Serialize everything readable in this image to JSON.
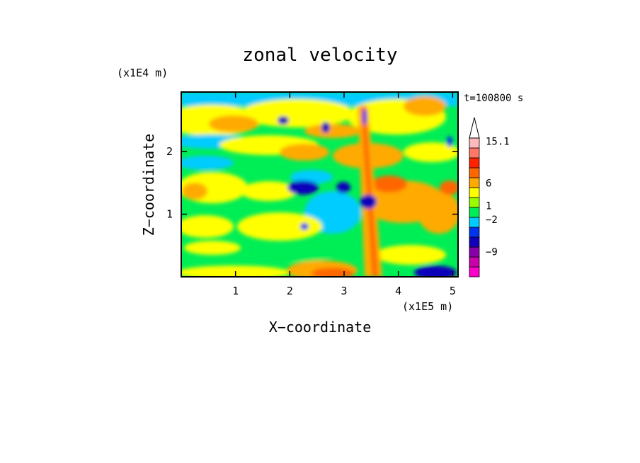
{
  "chart_data": {
    "type": "heatmap",
    "title": "zonal velocity",
    "xlabel": "X−coordinate",
    "ylabel": "Z−coordinate",
    "x_scale_label": "(x1E5 m)",
    "y_scale_label": "(x1E4 m)",
    "time_label": "t=100800 s",
    "xlim": [
      0.0,
      5.1
    ],
    "ylim": [
      0.0,
      2.95
    ],
    "x_ticks": [
      1,
      2,
      3,
      4,
      5
    ],
    "y_ticks": [
      1,
      2
    ],
    "colorbar": {
      "levels": [
        {
          "color": "#ff00cc"
        },
        {
          "color": "#cc00aa"
        },
        {
          "color": "#8800aa"
        },
        {
          "color": "#1100bb"
        },
        {
          "color": "#0033ee"
        },
        {
          "color": "#00ccff"
        },
        {
          "color": "#00ee55"
        },
        {
          "color": "#99ff00"
        },
        {
          "color": "#ffff00"
        },
        {
          "color": "#ffaa00"
        },
        {
          "color": "#ff6600"
        },
        {
          "color": "#ff2200"
        },
        {
          "color": "#ff7766"
        },
        {
          "color": "#ffbbbb"
        }
      ],
      "labels": [
        {
          "text": "15.1",
          "value": 15.1
        },
        {
          "text": "6",
          "value": 6
        },
        {
          "text": "1",
          "value": 1
        },
        {
          "text": "−2",
          "value": -2
        },
        {
          "text": "−9",
          "value": -9
        }
      ]
    }
  }
}
